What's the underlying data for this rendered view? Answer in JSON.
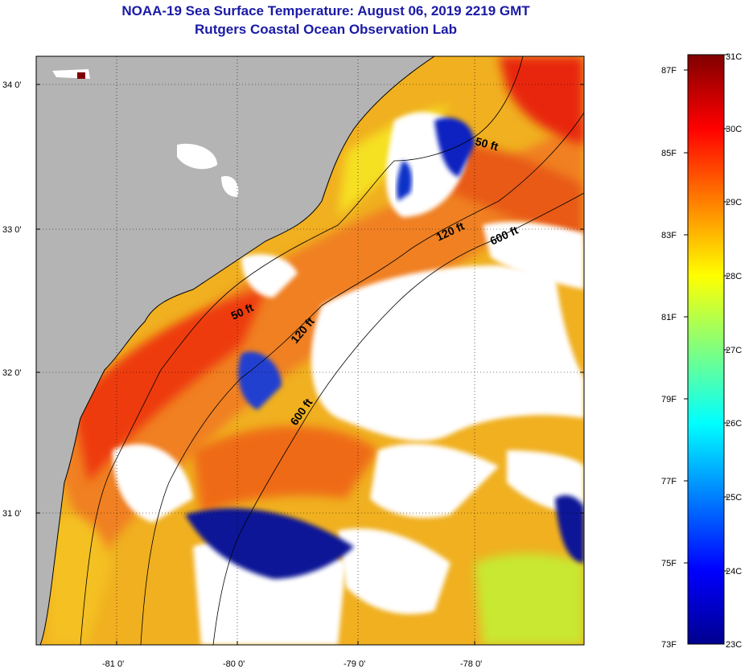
{
  "title": {
    "line1": "NOAA-19 Sea Surface Temperature:  August 06, 2019 2219 GMT",
    "line2": "Rutgers Coastal Ocean Observation Lab"
  },
  "map": {
    "lat_labels": [
      "34 0'",
      "33 0'",
      "32 0'",
      "31 0'"
    ],
    "lon_labels": [
      "-81 0'",
      "-80 0'",
      "-79 0'",
      "-78 0'"
    ],
    "depth_labels": [
      "50 ft",
      "120 ft",
      "600 ft",
      "50 ft",
      "120 ft",
      "600 ft"
    ],
    "colors": {
      "land": "#b4b4b4",
      "cloud": "#ffffff"
    }
  },
  "colorbar": {
    "fahrenheit": [
      "87F",
      "85F",
      "83F",
      "81F",
      "79F",
      "77F",
      "75F",
      "73F"
    ],
    "celsius": [
      "31C",
      "30C",
      "29C",
      "28C",
      "27C",
      "26C",
      "25C",
      "24C",
      "23C"
    ]
  }
}
